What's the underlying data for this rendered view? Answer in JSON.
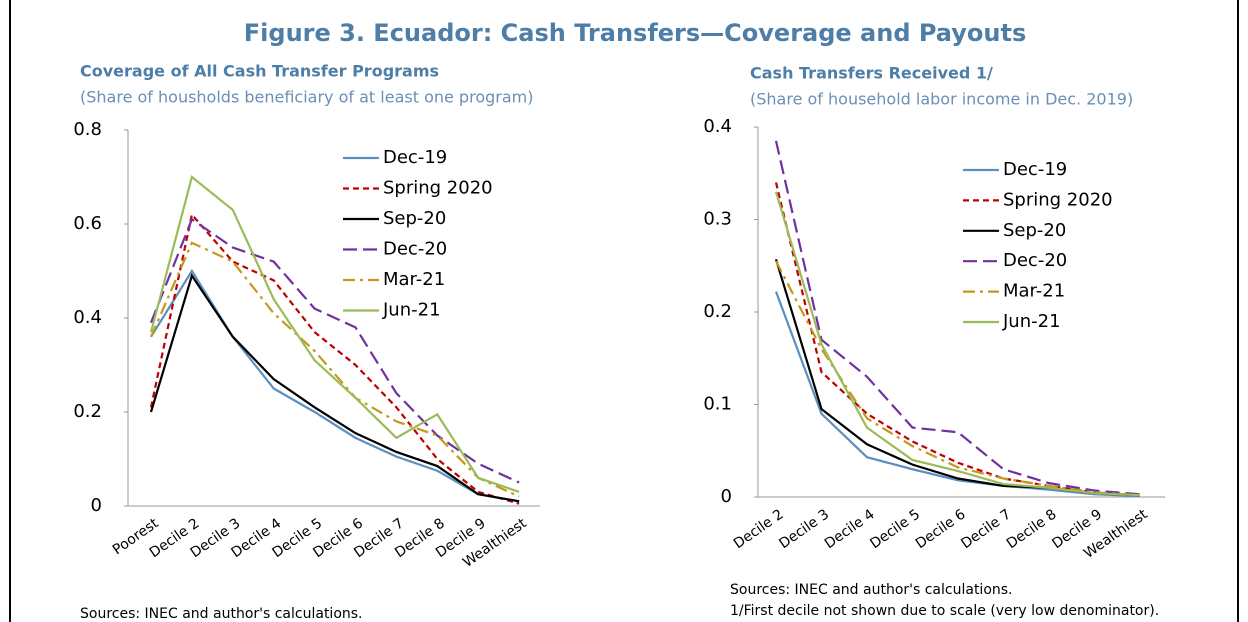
{
  "title": "Figure 3. Ecuador: Cash Transfers—Coverage and Payouts",
  "chart_data": [
    {
      "type": "line",
      "title": "Coverage of All Cash Transfer Programs",
      "subtitle": "(Share of housholds beneficiary of at least one program)",
      "categories": [
        "Poorest",
        "Decile 2",
        "Decile 3",
        "Decile 4",
        "Decile 5",
        "Decile 6",
        "Decile 7",
        "Decile 8",
        "Decile 9",
        "Wealthiest"
      ],
      "ylim": [
        0,
        0.8
      ],
      "yticks": [
        0,
        0.2,
        0.4,
        0.6,
        0.8
      ],
      "series": [
        {
          "name": "Dec-19",
          "color": "#5b8fc0",
          "style": "solid",
          "values": [
            0.36,
            0.5,
            0.36,
            0.25,
            0.2,
            0.145,
            0.105,
            0.075,
            0.025,
            0.01
          ]
        },
        {
          "name": "Spring 2020",
          "color": "#c00000",
          "style": "dash",
          "values": [
            0.21,
            0.62,
            0.52,
            0.48,
            0.37,
            0.3,
            0.21,
            0.1,
            0.03,
            0.005
          ]
        },
        {
          "name": "Sep-20",
          "color": "#000000",
          "style": "solid",
          "values": [
            0.2,
            0.49,
            0.36,
            0.27,
            0.21,
            0.155,
            0.115,
            0.085,
            0.025,
            0.01
          ]
        },
        {
          "name": "Dec-20",
          "color": "#7030a0",
          "style": "longdash",
          "values": [
            0.39,
            0.61,
            0.55,
            0.52,
            0.42,
            0.38,
            0.24,
            0.15,
            0.09,
            0.05
          ]
        },
        {
          "name": "Mar-21",
          "color": "#c8961e",
          "style": "dashdot",
          "values": [
            0.36,
            0.56,
            0.52,
            0.41,
            0.33,
            0.23,
            0.18,
            0.15,
            0.06,
            0.02
          ]
        },
        {
          "name": "Jun-21",
          "color": "#9bbb59",
          "style": "solid",
          "values": [
            0.37,
            0.7,
            0.63,
            0.44,
            0.31,
            0.23,
            0.145,
            0.195,
            0.06,
            0.03
          ]
        }
      ],
      "notes": [
        "Sources: INEC and author's calculations."
      ]
    },
    {
      "type": "line",
      "title": "Cash Transfers Received 1/",
      "subtitle": "(Share of household labor income in Dec. 2019)",
      "categories": [
        "Decile 2",
        "Decile 3",
        "Decile 4",
        "Decile 5",
        "Decile 6",
        "Decile 7",
        "Decile 8",
        "Decile 9",
        "Wealthiest"
      ],
      "ylim": [
        0,
        0.4
      ],
      "yticks": [
        0,
        0.1,
        0.2,
        0.3,
        0.4
      ],
      "series": [
        {
          "name": "Dec-19",
          "color": "#5b8fc0",
          "style": "solid",
          "values": [
            0.222,
            0.09,
            0.043,
            0.03,
            0.018,
            0.012,
            0.008,
            0.003,
            0.001
          ]
        },
        {
          "name": "Spring 2020",
          "color": "#c00000",
          "style": "dash",
          "values": [
            0.34,
            0.135,
            0.09,
            0.06,
            0.037,
            0.02,
            0.012,
            0.005,
            0.002
          ]
        },
        {
          "name": "Sep-20",
          "color": "#000000",
          "style": "solid",
          "values": [
            0.257,
            0.095,
            0.057,
            0.035,
            0.02,
            0.012,
            0.01,
            0.004,
            0.002
          ]
        },
        {
          "name": "Dec-20",
          "color": "#7030a0",
          "style": "longdash",
          "values": [
            0.385,
            0.17,
            0.13,
            0.075,
            0.07,
            0.03,
            0.015,
            0.007,
            0.003
          ]
        },
        {
          "name": "Mar-21",
          "color": "#c8961e",
          "style": "dashdot",
          "values": [
            0.255,
            0.16,
            0.085,
            0.055,
            0.032,
            0.02,
            0.012,
            0.005,
            0.002
          ]
        },
        {
          "name": "Jun-21",
          "color": "#9bbb59",
          "style": "solid",
          "values": [
            0.33,
            0.165,
            0.075,
            0.04,
            0.028,
            0.014,
            0.01,
            0.004,
            0.002
          ]
        }
      ],
      "notes": [
        "Sources: INEC and author's calculations.",
        "1/First decile not shown due to scale (very low denominator)."
      ]
    }
  ]
}
